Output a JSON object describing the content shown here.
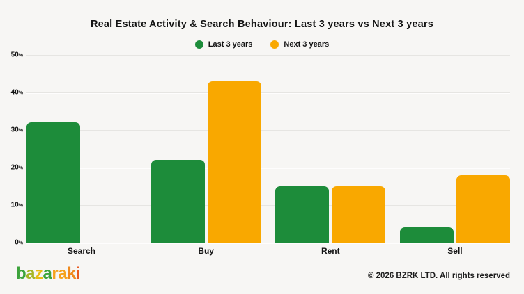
{
  "chart_data": {
    "type": "bar",
    "title": "Real Estate Activity & Search Behaviour: Last 3 years vs Next 3 years",
    "categories": [
      "Search",
      "Buy",
      "Rent",
      "Sell"
    ],
    "series": [
      {
        "name": "Last 3 years",
        "color": "#1d8c3a",
        "values": [
          32,
          22,
          15,
          4
        ]
      },
      {
        "name": "Next 3 years",
        "color": "#f9a800",
        "values": [
          0,
          43,
          15,
          18
        ]
      }
    ],
    "ylim": [
      0,
      50
    ],
    "yticks": [
      0,
      10,
      20,
      30,
      40,
      50
    ],
    "ytick_suffix": "%",
    "grid": "horizontal",
    "legend_position": "top"
  },
  "footer": {
    "copyright": "© 2026 BZRK LTD. All rights reserved",
    "logo": {
      "text": "bazaraki",
      "letters": [
        {
          "ch": "b",
          "color": "#3da33b"
        },
        {
          "ch": "a",
          "color": "#a6b626"
        },
        {
          "ch": "z",
          "color": "#e9bc13"
        },
        {
          "ch": "a",
          "color": "#3da33b"
        },
        {
          "ch": "r",
          "color": "#f6a21c"
        },
        {
          "ch": "a",
          "color": "#f6a21c"
        },
        {
          "ch": "k",
          "color": "#ef8a1e"
        },
        {
          "ch": "i",
          "color": "#e85a20"
        }
      ]
    }
  },
  "colors": {
    "background": "#f7f6f4",
    "gridline": "#e6e5e2",
    "text": "#141414"
  }
}
